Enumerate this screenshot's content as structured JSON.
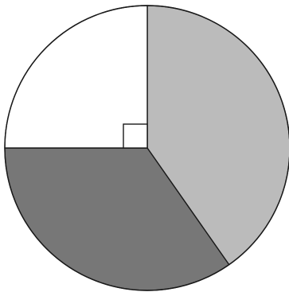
{
  "chart_data": {
    "type": "pie",
    "slices": [
      {
        "degrees": 145,
        "color": "#bbbbbb"
      },
      {
        "degrees": 125,
        "color": "#777777"
      },
      {
        "degrees": 90,
        "color": "#ffffff",
        "right_angle_marker": true
      }
    ],
    "start_direction": "up",
    "clockwise": true,
    "outline_color": "#1a1a1a"
  }
}
